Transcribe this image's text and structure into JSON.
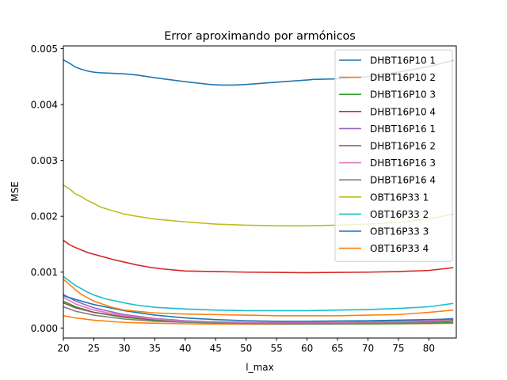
{
  "chart_data": {
    "type": "line",
    "title": "Error aproximando por armónicos",
    "xlabel": "l_max",
    "ylabel": "MSE",
    "xlim": [
      20,
      84.5
    ],
    "ylim": [
      -0.00018,
      0.00505
    ],
    "xticks": [
      20,
      25,
      30,
      35,
      40,
      45,
      50,
      55,
      60,
      65,
      70,
      75,
      80
    ],
    "yticks": [
      0.0,
      0.001,
      0.002,
      0.003,
      0.004,
      0.005
    ],
    "ytick_labels": [
      "0.000",
      "0.001",
      "0.002",
      "0.003",
      "0.004",
      "0.005"
    ],
    "grid": false,
    "legend_position": "top-right",
    "series": [
      {
        "name": "DHBT16P10 1",
        "color": "#1f77b4",
        "x": [
          20,
          21,
          22,
          23,
          24,
          25,
          26,
          28,
          30,
          32,
          35,
          40,
          44,
          46,
          48,
          50,
          55,
          60,
          61,
          65,
          70,
          75,
          80,
          84
        ],
        "y": [
          0.0048,
          0.00474,
          0.00467,
          0.00463,
          0.0046,
          0.00458,
          0.00457,
          0.00456,
          0.00455,
          0.00453,
          0.00448,
          0.00441,
          0.00436,
          0.00435,
          0.00435,
          0.00436,
          0.0044,
          0.00444,
          0.00445,
          0.00446,
          0.0045,
          0.00458,
          0.00468,
          0.00479
        ]
      },
      {
        "name": "DHBT16P10 2",
        "color": "#ff7f0e",
        "x": [
          20,
          22,
          25,
          30,
          35,
          40,
          45,
          50,
          55,
          60,
          65,
          70,
          75,
          80,
          84
        ],
        "y": [
          0.00022,
          0.00018,
          0.00014,
          0.0001,
          8.5e-05,
          7.5e-05,
          7e-05,
          6.8e-05,
          6.7e-05,
          6.8e-05,
          7e-05,
          7.2e-05,
          7.5e-05,
          8e-05,
          8.5e-05
        ]
      },
      {
        "name": "DHBT16P10 3",
        "color": "#2ca02c",
        "x": [
          20,
          22,
          25,
          30,
          35,
          40,
          45,
          50,
          55,
          60,
          65,
          70,
          75,
          80,
          84
        ],
        "y": [
          0.00048,
          0.00038,
          0.00028,
          0.00019,
          0.00014,
          0.00011,
          9e-05,
          8e-05,
          7.5e-05,
          7.2e-05,
          7.2e-05,
          7.4e-05,
          7.8e-05,
          8.5e-05,
          9.5e-05
        ]
      },
      {
        "name": "DHBT16P10 4",
        "color": "#d62728",
        "x": [
          20,
          21,
          22,
          24,
          26,
          28,
          30,
          32,
          34,
          36,
          38,
          40,
          45,
          50,
          55,
          60,
          65,
          70,
          75,
          80,
          84
        ],
        "y": [
          0.00157,
          0.00149,
          0.00144,
          0.00135,
          0.00129,
          0.00123,
          0.00118,
          0.00113,
          0.00109,
          0.00106,
          0.00104,
          0.00102,
          0.00101,
          0.001,
          0.000995,
          0.00099,
          0.000995,
          0.001,
          0.00101,
          0.00103,
          0.00108
        ]
      },
      {
        "name": "DHBT16P16 1",
        "color": "#9467bd",
        "x": [
          20,
          22,
          25,
          30,
          35,
          40,
          45,
          50,
          55,
          60,
          65,
          70,
          75,
          80,
          84
        ],
        "y": [
          0.0006,
          0.00048,
          0.00036,
          0.00024,
          0.00017,
          0.00013,
          0.00011,
          0.0001,
          9.5e-05,
          9.5e-05,
          0.0001,
          0.00011,
          0.00012,
          0.00014,
          0.00017
        ]
      },
      {
        "name": "DHBT16P16 2",
        "color": "#8c564b",
        "x": [
          20,
          22,
          25,
          30,
          35,
          40,
          45,
          50,
          55,
          60,
          65,
          70,
          75,
          80,
          84
        ],
        "y": [
          0.00045,
          0.00036,
          0.00028,
          0.0002,
          0.00015,
          0.00012,
          0.0001,
          9e-05,
          8.5e-05,
          8.5e-05,
          9e-05,
          9.5e-05,
          0.0001,
          0.00011,
          0.00013
        ]
      },
      {
        "name": "DHBT16P16 3",
        "color": "#e377c2",
        "x": [
          20,
          22,
          25,
          30,
          35,
          40,
          45,
          50,
          55,
          60,
          65,
          70,
          75,
          80,
          84
        ],
        "y": [
          0.00055,
          0.00043,
          0.00032,
          0.00022,
          0.00016,
          0.00012,
          0.0001,
          9e-05,
          8.5e-05,
          8.5e-05,
          9e-05,
          0.0001,
          0.00011,
          0.00013,
          0.00015
        ]
      },
      {
        "name": "DHBT16P16 4",
        "color": "#7f7f7f",
        "x": [
          20,
          22,
          25,
          30,
          35,
          40,
          45,
          50,
          55,
          60,
          65,
          70,
          75,
          80,
          84
        ],
        "y": [
          0.00038,
          0.0003,
          0.00023,
          0.00016,
          0.00012,
          0.0001,
          9e-05,
          8e-05,
          7.8e-05,
          7.8e-05,
          8e-05,
          8.5e-05,
          9e-05,
          0.0001,
          0.00012
        ]
      },
      {
        "name": "OBT16P33 1",
        "color": "#bcbd22",
        "x": [
          20,
          21,
          22,
          23,
          24,
          25,
          26,
          28,
          30,
          32,
          35,
          40,
          45,
          50,
          55,
          60,
          65,
          70,
          75,
          80,
          84
        ],
        "y": [
          0.00256,
          0.00249,
          0.0024,
          0.00235,
          0.00228,
          0.00223,
          0.00217,
          0.0021,
          0.00204,
          0.002,
          0.00195,
          0.0019,
          0.00186,
          0.00184,
          0.00183,
          0.00183,
          0.00184,
          0.00186,
          0.00189,
          0.00195,
          0.00204
        ]
      },
      {
        "name": "OBT16P33 2",
        "color": "#17becf",
        "x": [
          20,
          21,
          22,
          23,
          24,
          25,
          27,
          30,
          32,
          35,
          40,
          45,
          50,
          55,
          60,
          65,
          70,
          75,
          80,
          84
        ],
        "y": [
          0.00092,
          0.00084,
          0.00076,
          0.0007,
          0.00064,
          0.00059,
          0.00052,
          0.00045,
          0.00041,
          0.00037,
          0.00034,
          0.00032,
          0.00031,
          0.00031,
          0.00031,
          0.00032,
          0.00033,
          0.00035,
          0.00038,
          0.00044
        ]
      },
      {
        "name": "OBT16P33 3",
        "color": "#1f77b4",
        "x": [
          20,
          22,
          25,
          30,
          35,
          40,
          45,
          50,
          55,
          60,
          65,
          70,
          75,
          80,
          84
        ],
        "y": [
          0.00058,
          0.00051,
          0.00042,
          0.00031,
          0.00023,
          0.00018,
          0.00015,
          0.00013,
          0.00012,
          0.00012,
          0.000125,
          0.00013,
          0.00014,
          0.00015,
          0.00016
        ]
      },
      {
        "name": "OBT16P33 4",
        "color": "#ff7f0e",
        "x": [
          20,
          21,
          22,
          23,
          25,
          28,
          30,
          35,
          40,
          45,
          50,
          55,
          60,
          65,
          70,
          75,
          80,
          84
        ],
        "y": [
          0.00087,
          0.00078,
          0.00068,
          0.0006,
          0.00048,
          0.00037,
          0.00032,
          0.00027,
          0.00025,
          0.00024,
          0.00023,
          0.00022,
          0.00022,
          0.00022,
          0.00023,
          0.00024,
          0.00028,
          0.00032
        ]
      }
    ]
  }
}
